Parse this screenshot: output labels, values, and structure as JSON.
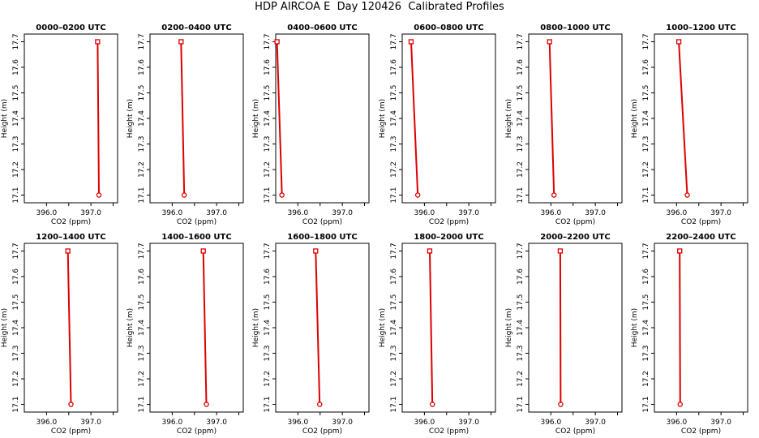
{
  "page_title": "HDP AIRCOA E  Day 120426  Calibrated Profiles",
  "colors": {
    "profile": "#dd0000",
    "axis": "#000000"
  },
  "chart_data": [
    {
      "type": "line",
      "title": "0000–0200 UTC",
      "xlabel": "CO2 (ppm)",
      "ylabel": "Height (m)",
      "xlim": [
        395.5,
        397.6
      ],
      "ylim": [
        17.07,
        17.73
      ],
      "xticks": [
        "396.0",
        "397.0"
      ],
      "yticks": [
        "17.1",
        "17.2",
        "17.3",
        "17.4",
        "17.5",
        "17.6",
        "17.7"
      ],
      "x": [
        397.15,
        397.18
      ],
      "y": [
        17.7,
        17.1
      ],
      "grid": false
    },
    {
      "type": "line",
      "title": "0200–0400 UTC",
      "xlabel": "CO2 (ppm)",
      "ylabel": "Height (m)",
      "xlim": [
        395.5,
        397.6
      ],
      "ylim": [
        17.07,
        17.73
      ],
      "xticks": [
        "396.0",
        "397.0"
      ],
      "yticks": [
        "17.1",
        "17.2",
        "17.3",
        "17.4",
        "17.5",
        "17.6",
        "17.7"
      ],
      "x": [
        396.2,
        396.27
      ],
      "y": [
        17.7,
        17.1
      ],
      "grid": false
    },
    {
      "type": "line",
      "title": "0400–0600 UTC",
      "xlabel": "CO2 (ppm)",
      "ylabel": "Height (m)",
      "xlim": [
        395.5,
        397.6
      ],
      "ylim": [
        17.07,
        17.73
      ],
      "xticks": [
        "396.0",
        "397.0"
      ],
      "yticks": [
        "17.1",
        "17.2",
        "17.3",
        "17.4",
        "17.5",
        "17.6",
        "17.7"
      ],
      "x": [
        395.53,
        395.64
      ],
      "y": [
        17.7,
        17.1
      ],
      "grid": false
    },
    {
      "type": "line",
      "title": "0600–0800 UTC",
      "xlabel": "CO2 (ppm)",
      "ylabel": "Height (m)",
      "xlim": [
        395.5,
        397.6
      ],
      "ylim": [
        17.07,
        17.73
      ],
      "xticks": [
        "396.0",
        "397.0"
      ],
      "yticks": [
        "17.1",
        "17.2",
        "17.3",
        "17.4",
        "17.5",
        "17.6",
        "17.7"
      ],
      "x": [
        395.7,
        395.85
      ],
      "y": [
        17.7,
        17.1
      ],
      "grid": false
    },
    {
      "type": "line",
      "title": "0800–1000 UTC",
      "xlabel": "CO2 (ppm)",
      "ylabel": "Height (m)",
      "xlim": [
        395.5,
        397.6
      ],
      "ylim": [
        17.07,
        17.73
      ],
      "xticks": [
        "396.0",
        "397.0"
      ],
      "yticks": [
        "17.1",
        "17.2",
        "17.3",
        "17.4",
        "17.5",
        "17.6",
        "17.7"
      ],
      "x": [
        395.97,
        396.07
      ],
      "y": [
        17.7,
        17.1
      ],
      "grid": false
    },
    {
      "type": "line",
      "title": "1000–1200 UTC",
      "xlabel": "CO2 (ppm)",
      "ylabel": "Height (m)",
      "xlim": [
        395.5,
        397.6
      ],
      "ylim": [
        17.07,
        17.73
      ],
      "xticks": [
        "396.0",
        "397.0"
      ],
      "yticks": [
        "17.1",
        "17.2",
        "17.3",
        "17.4",
        "17.5",
        "17.6",
        "17.7"
      ],
      "x": [
        396.05,
        396.24
      ],
      "y": [
        17.7,
        17.1
      ],
      "grid": false
    },
    {
      "type": "line",
      "title": "1200–1400 UTC",
      "xlabel": "CO2 (ppm)",
      "ylabel": "Height (m)",
      "xlim": [
        395.5,
        397.6
      ],
      "ylim": [
        17.07,
        17.73
      ],
      "xticks": [
        "396.0",
        "397.0"
      ],
      "yticks": [
        "17.1",
        "17.2",
        "17.3",
        "17.4",
        "17.5",
        "17.6",
        "17.7"
      ],
      "x": [
        396.48,
        396.55
      ],
      "y": [
        17.7,
        17.1
      ],
      "grid": false
    },
    {
      "type": "line",
      "title": "1400–1600 UTC",
      "xlabel": "CO2 (ppm)",
      "ylabel": "Height (m)",
      "xlim": [
        395.5,
        397.6
      ],
      "ylim": [
        17.07,
        17.73
      ],
      "xticks": [
        "396.0",
        "397.0"
      ],
      "yticks": [
        "17.1",
        "17.2",
        "17.3",
        "17.4",
        "17.5",
        "17.6",
        "17.7"
      ],
      "x": [
        396.7,
        396.77
      ],
      "y": [
        17.7,
        17.1
      ],
      "grid": false
    },
    {
      "type": "line",
      "title": "1600–1800 UTC",
      "xlabel": "CO2 (ppm)",
      "ylabel": "Height (m)",
      "xlim": [
        395.5,
        397.6
      ],
      "ylim": [
        17.07,
        17.73
      ],
      "xticks": [
        "396.0",
        "397.0"
      ],
      "yticks": [
        "17.1",
        "17.2",
        "17.3",
        "17.4",
        "17.5",
        "17.6",
        "17.7"
      ],
      "x": [
        396.4,
        396.49
      ],
      "y": [
        17.7,
        17.1
      ],
      "grid": false
    },
    {
      "type": "line",
      "title": "1800–2000 UTC",
      "xlabel": "CO2 (ppm)",
      "ylabel": "Height (m)",
      "xlim": [
        395.5,
        397.6
      ],
      "ylim": [
        17.07,
        17.73
      ],
      "xticks": [
        "396.0",
        "397.0"
      ],
      "yticks": [
        "17.1",
        "17.2",
        "17.3",
        "17.4",
        "17.5",
        "17.6",
        "17.7"
      ],
      "x": [
        396.12,
        396.18
      ],
      "y": [
        17.7,
        17.1
      ],
      "grid": false
    },
    {
      "type": "line",
      "title": "2000–2200 UTC",
      "xlabel": "CO2 (ppm)",
      "ylabel": "Height (m)",
      "xlim": [
        395.5,
        397.6
      ],
      "ylim": [
        17.07,
        17.73
      ],
      "xticks": [
        "396.0",
        "397.0"
      ],
      "yticks": [
        "17.1",
        "17.2",
        "17.3",
        "17.4",
        "17.5",
        "17.6",
        "17.7"
      ],
      "x": [
        396.21,
        396.22
      ],
      "y": [
        17.7,
        17.1
      ],
      "grid": false
    },
    {
      "type": "line",
      "title": "2200–2400 UTC",
      "xlabel": "CO2 (ppm)",
      "ylabel": "Height (m)",
      "xlim": [
        395.5,
        397.6
      ],
      "ylim": [
        17.07,
        17.73
      ],
      "xticks": [
        "396.0",
        "397.0"
      ],
      "yticks": [
        "17.1",
        "17.2",
        "17.3",
        "17.4",
        "17.5",
        "17.6",
        "17.7"
      ],
      "x": [
        396.07,
        396.08
      ],
      "y": [
        17.7,
        17.1
      ],
      "grid": false
    }
  ]
}
